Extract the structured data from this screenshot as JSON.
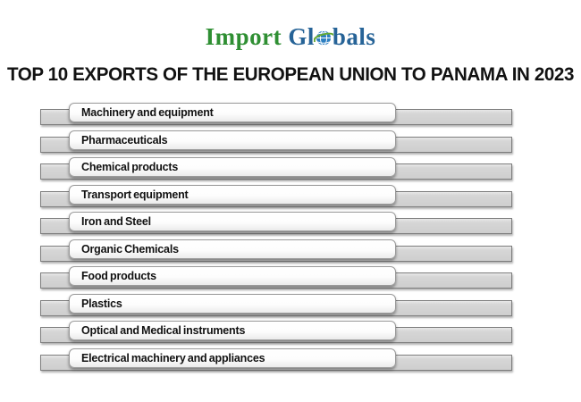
{
  "logo": {
    "import_text": "Import",
    "gl_text": "Gl",
    "bals_text": "bals",
    "green_color": "#2f8f33",
    "blue_color": "#266397",
    "globe_blue": "#2d7fc1",
    "swoosh_green": "#63a832"
  },
  "title": "TOP 10 EXPORTS OF THE EUROPEAN UNION TO PANAMA IN 2023",
  "chart_data": {
    "type": "bar",
    "orientation": "horizontal",
    "title": "TOP 10 EXPORTS OF THE EUROPEAN UNION TO PANAMA IN 2023",
    "categories": [
      "Machinery and equipment",
      "Pharmaceuticals",
      "Chemical products",
      "Transport equipment",
      "Iron and Steel",
      "Organic Chemicals",
      "Food products",
      "Plastics",
      "Optical and Medical instruments",
      "Electrical machinery and appliances"
    ],
    "values_shown": false,
    "equal_length_bars": true,
    "bar_fill_color": "#d2d2d2",
    "bar_border_color": "#7d7d7d",
    "xlabel": "",
    "ylabel": "",
    "grid": false,
    "legend": "none"
  }
}
